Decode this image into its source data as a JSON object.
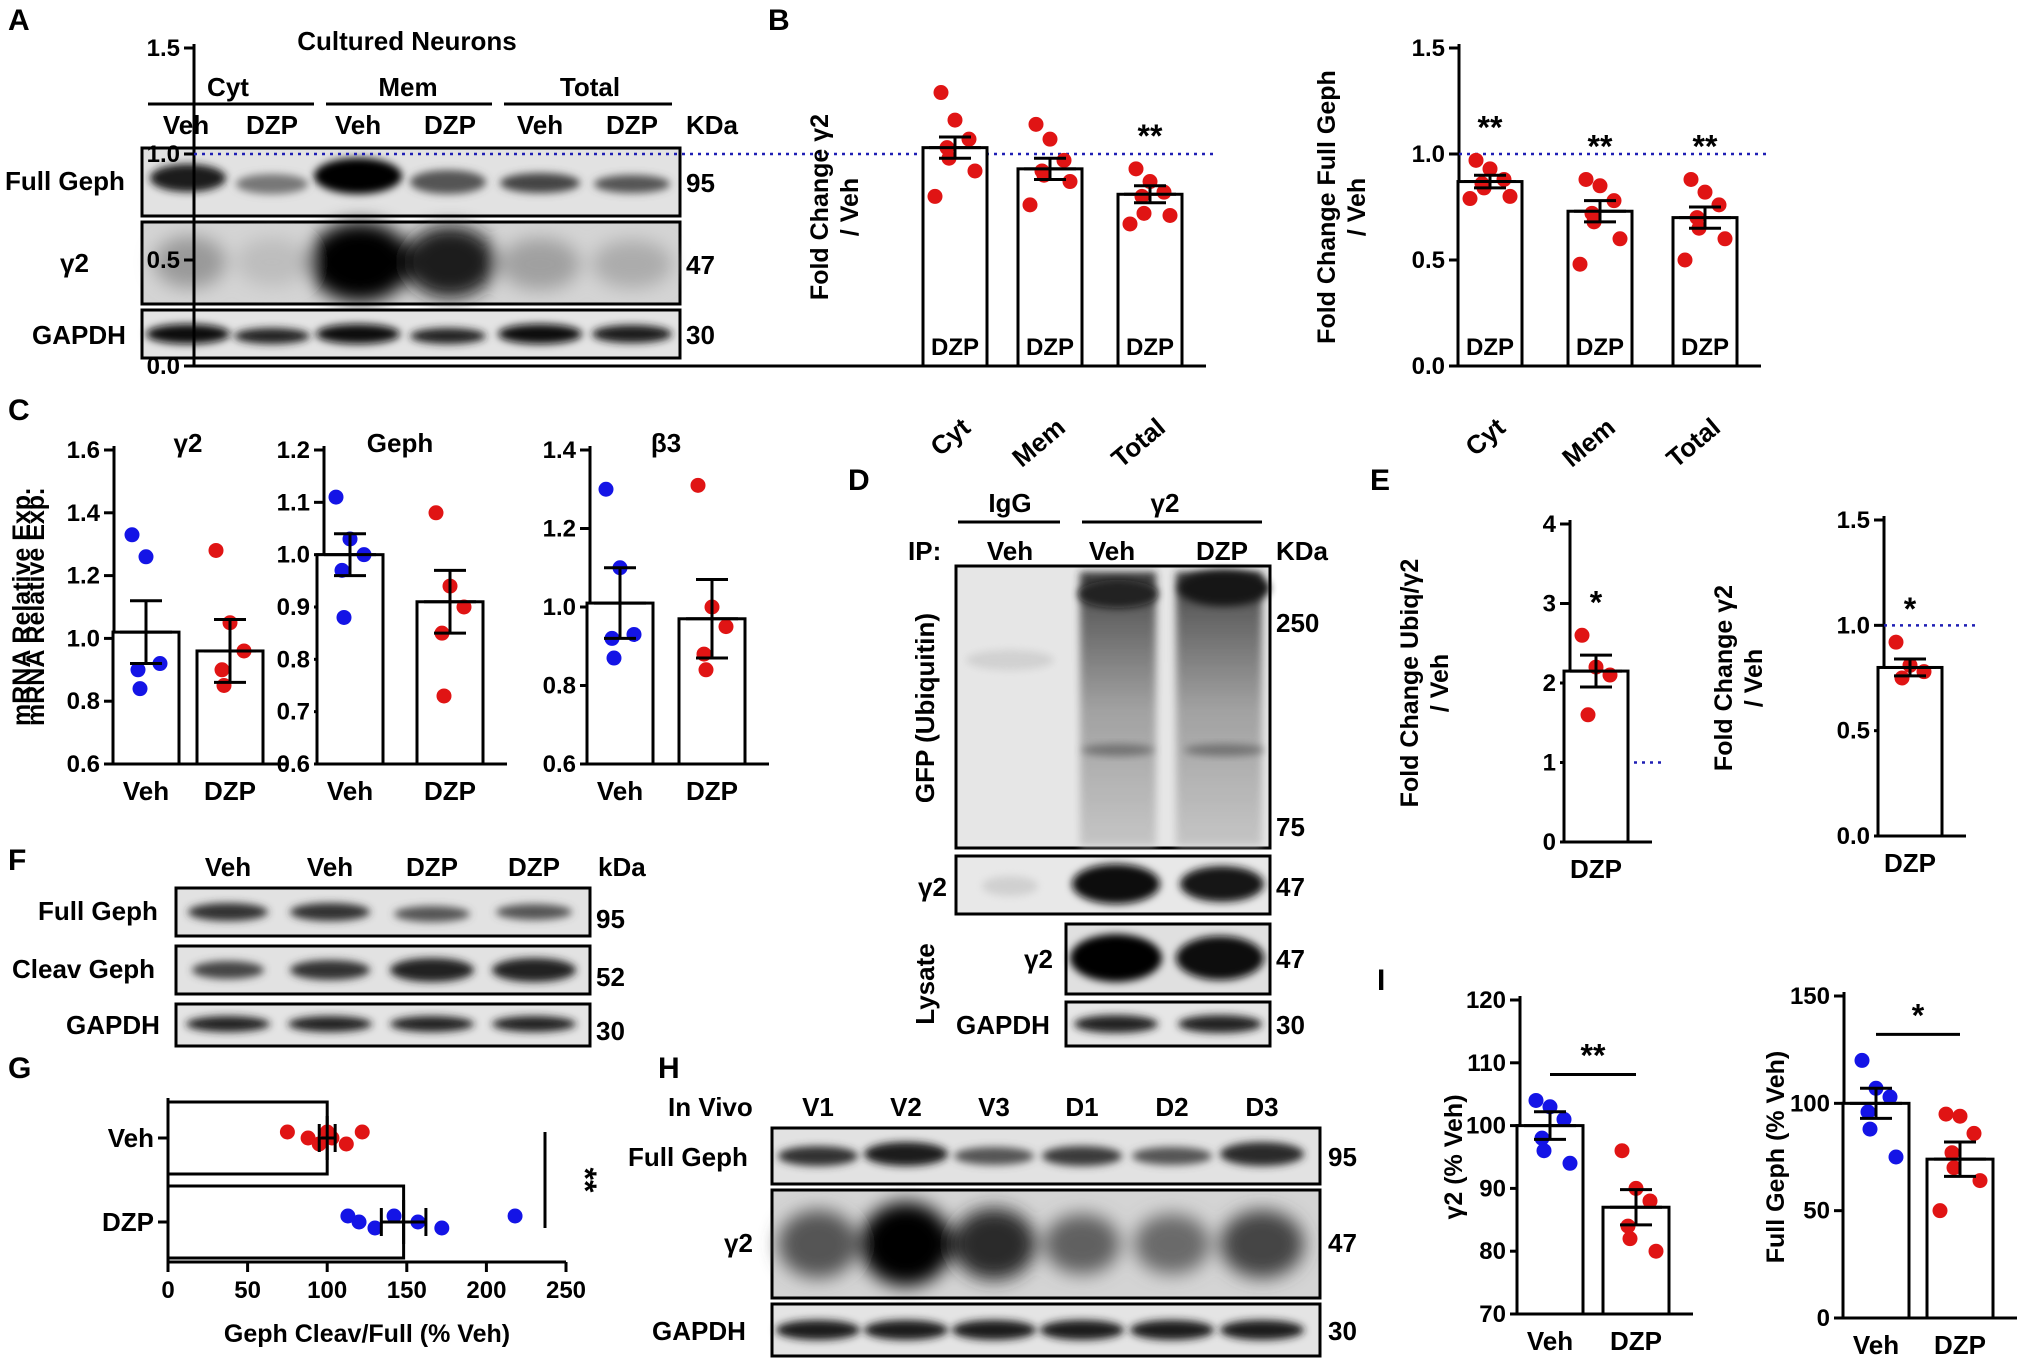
{
  "panels": {
    "A": "A",
    "B": "B",
    "C": "C",
    "D": "D",
    "E": "E",
    "F": "F",
    "G": "G",
    "H": "H",
    "I": "I"
  },
  "colors": {
    "veh": "#1414e6",
    "dzp": "#e01414",
    "ref": "#1e1eb4"
  },
  "panel_A": {
    "title": "Cultured Neurons",
    "groups": [
      "Cyt",
      "Mem",
      "Total"
    ],
    "lanes": [
      "Veh",
      "DZP",
      "Veh",
      "DZP",
      "Veh",
      "DZP"
    ],
    "kda_header": "KDa",
    "blots": [
      {
        "label": "Full Geph",
        "kda": "95"
      },
      {
        "label": "γ2",
        "kda": "47"
      },
      {
        "label": "GAPDH",
        "kda": "30"
      }
    ]
  },
  "chart_data": [
    {
      "id": "B1",
      "type": "bar",
      "ylabel": "Fold Change γ2 / Veh",
      "ylabel_lines": [
        "Fold Change γ2",
        "/ Veh"
      ],
      "categories": [
        "Cyt",
        "Mem",
        "Total"
      ],
      "bar_label": "DZP",
      "ylim": [
        0,
        1.5
      ],
      "yticks": [
        "0.0",
        "0.5",
        "1.0",
        "1.5"
      ],
      "ytick_values": [
        0,
        0.5,
        1.0,
        1.5
      ],
      "reference_line": 1.0,
      "series": [
        {
          "values": [
            1.03,
            0.93,
            0.81
          ],
          "sem": [
            0.05,
            0.05,
            0.04
          ]
        }
      ],
      "points": [
        [
          1.29,
          1.16,
          1.07,
          1.03,
          0.98,
          0.92,
          0.8
        ],
        [
          1.14,
          1.07,
          0.97,
          0.92,
          0.9,
          0.87,
          0.76
        ],
        [
          0.93,
          0.87,
          0.82,
          0.8,
          0.72,
          0.71,
          0.67
        ]
      ],
      "significance": [
        "",
        "",
        "**"
      ]
    },
    {
      "id": "B2",
      "type": "bar",
      "ylabel": "Fold Change Full Geph / Veh",
      "ylabel_lines": [
        "Fold Change Full Geph",
        "/ Veh"
      ],
      "categories": [
        "Cyt",
        "Mem",
        "Total"
      ],
      "bar_label": "DZP",
      "ylim": [
        0,
        1.5
      ],
      "yticks": [
        "0.0",
        "0.5",
        "1.0",
        "1.5"
      ],
      "ytick_values": [
        0,
        0.5,
        1.0,
        1.5
      ],
      "reference_line": 1.0,
      "series": [
        {
          "values": [
            0.87,
            0.73,
            0.7
          ],
          "sem": [
            0.03,
            0.05,
            0.05
          ]
        }
      ],
      "points": [
        [
          0.97,
          0.93,
          0.88,
          0.86,
          0.84,
          0.8,
          0.79
        ],
        [
          0.88,
          0.85,
          0.78,
          0.72,
          0.68,
          0.6,
          0.48
        ],
        [
          0.88,
          0.82,
          0.76,
          0.7,
          0.65,
          0.6,
          0.5
        ]
      ],
      "significance": [
        "**",
        "**",
        "**"
      ]
    },
    {
      "id": "C1",
      "type": "bar",
      "title": "γ2",
      "ylabel": "mRNA Relative Exp.",
      "categories": [
        "Veh",
        "DZP"
      ],
      "ylim": [
        0.6,
        1.6
      ],
      "yticks": [
        "0.6",
        "0.8",
        "1.0",
        "1.2",
        "1.4",
        "1.6"
      ],
      "ytick_values": [
        0.6,
        0.8,
        1.0,
        1.2,
        1.4,
        1.6
      ],
      "series": [
        {
          "values": [
            1.02,
            0.96
          ],
          "sem": [
            0.1,
            0.1
          ]
        }
      ],
      "points": [
        [
          1.33,
          1.26,
          0.92,
          0.9,
          0.84
        ],
        [
          1.28,
          1.05,
          0.96,
          0.9,
          0.85
        ]
      ],
      "point_colors": [
        "veh",
        "dzp"
      ]
    },
    {
      "id": "C2",
      "type": "bar",
      "title": "Geph",
      "categories": [
        "Veh",
        "DZP"
      ],
      "ylim": [
        0.6,
        1.2
      ],
      "yticks": [
        "0.6",
        "0.7",
        "0.8",
        "0.9",
        "1.0",
        "1.1",
        "1.2"
      ],
      "ytick_values": [
        0.6,
        0.7,
        0.8,
        0.9,
        1.0,
        1.1,
        1.2
      ],
      "series": [
        {
          "values": [
            1.0,
            0.91
          ],
          "sem": [
            0.04,
            0.06
          ]
        }
      ],
      "points": [
        [
          1.11,
          1.03,
          1.0,
          0.97,
          0.88
        ],
        [
          1.08,
          0.94,
          0.9,
          0.85,
          0.73
        ]
      ],
      "point_colors": [
        "veh",
        "dzp"
      ]
    },
    {
      "id": "C3",
      "type": "bar",
      "title": "β3",
      "categories": [
        "Veh",
        "DZP"
      ],
      "ylim": [
        0.6,
        1.4
      ],
      "yticks": [
        "0.6",
        "0.8",
        "1.0",
        "1.2",
        "1.4"
      ],
      "ytick_values": [
        0.6,
        0.8,
        1.0,
        1.2,
        1.4
      ],
      "series": [
        {
          "values": [
            1.01,
            0.97
          ],
          "sem": [
            0.09,
            0.1
          ]
        }
      ],
      "points": [
        [
          1.3,
          1.1,
          0.93,
          0.92,
          0.87
        ],
        [
          1.31,
          1.0,
          0.95,
          0.88,
          0.84
        ]
      ],
      "point_colors": [
        "veh",
        "dzp"
      ]
    },
    {
      "id": "E1",
      "type": "bar",
      "ylabel": "Fold Change Ubiq/γ2 / Veh",
      "ylabel_lines": [
        "Fold Change Ubiq/γ2",
        "/ Veh"
      ],
      "categories": [
        "DZP"
      ],
      "ylim": [
        0,
        4
      ],
      "yticks": [
        "0",
        "1",
        "2",
        "3",
        "4"
      ],
      "ytick_values": [
        0,
        1,
        2,
        3,
        4
      ],
      "reference_line": 1.0,
      "series": [
        {
          "values": [
            2.15
          ],
          "sem": [
            0.2
          ]
        }
      ],
      "points": [
        [
          2.6,
          2.2,
          2.1,
          1.6
        ]
      ],
      "point_colors": [
        "dzp"
      ],
      "significance": [
        "*"
      ]
    },
    {
      "id": "E2",
      "type": "bar",
      "ylabel": "Fold Change γ2 / Veh",
      "ylabel_lines": [
        "Fold Change γ2",
        "/ Veh"
      ],
      "categories": [
        "DZP"
      ],
      "ylim": [
        0,
        1.5
      ],
      "yticks": [
        "0.0",
        "0.5",
        "1.0",
        "1.5"
      ],
      "ytick_values": [
        0,
        0.5,
        1.0,
        1.5
      ],
      "reference_line": 1.0,
      "series": [
        {
          "values": [
            0.8
          ],
          "sem": [
            0.04
          ]
        }
      ],
      "points": [
        [
          0.92,
          0.81,
          0.78,
          0.75
        ]
      ],
      "point_colors": [
        "dzp"
      ],
      "significance": [
        "*"
      ]
    },
    {
      "id": "G",
      "type": "bar",
      "orientation": "horizontal",
      "xlabel": "Geph Cleav/Full (% Veh)",
      "categories": [
        "Veh",
        "DZP"
      ],
      "xlim": [
        0,
        250
      ],
      "xticks": [
        "0",
        "50",
        "100",
        "150",
        "200",
        "250"
      ],
      "xtick_values": [
        0,
        50,
        100,
        150,
        200,
        250
      ],
      "series": [
        {
          "values": [
            100,
            148
          ],
          "sem": [
            5,
            14
          ]
        }
      ],
      "points": [
        [
          75,
          88,
          95,
          100,
          103,
          112,
          122
        ],
        [
          113,
          120,
          130,
          142,
          157,
          172,
          218
        ]
      ],
      "point_colors": [
        "dzp",
        "veh"
      ],
      "significance": "**"
    },
    {
      "id": "I1",
      "type": "bar",
      "ylabel": "γ2 (% Veh)",
      "categories": [
        "Veh",
        "DZP"
      ],
      "ylim": [
        70,
        120
      ],
      "yticks": [
        "70",
        "80",
        "90",
        "100",
        "110",
        "120"
      ],
      "ytick_values": [
        70,
        80,
        90,
        100,
        110,
        120
      ],
      "series": [
        {
          "values": [
            100,
            87
          ],
          "sem": [
            2.2,
            2.8
          ]
        }
      ],
      "points": [
        [
          104,
          103,
          101,
          98,
          96,
          94
        ],
        [
          96,
          90,
          88,
          84,
          82,
          80
        ]
      ],
      "point_colors": [
        "veh",
        "dzp"
      ],
      "significance": "**"
    },
    {
      "id": "I2",
      "type": "bar",
      "ylabel": "Full Geph (% Veh)",
      "categories": [
        "Veh",
        "DZP"
      ],
      "ylim": [
        0,
        150
      ],
      "yticks": [
        "0",
        "50",
        "100",
        "150"
      ],
      "ytick_values": [
        0,
        50,
        100,
        150
      ],
      "series": [
        {
          "values": [
            100,
            74
          ],
          "sem": [
            7,
            8
          ]
        }
      ],
      "points": [
        [
          120,
          107,
          103,
          96,
          88,
          75
        ],
        [
          95,
          94,
          86,
          77,
          70,
          64,
          50
        ]
      ],
      "point_colors": [
        "veh",
        "dzp"
      ],
      "significance": "*"
    }
  ],
  "panel_D": {
    "ip_label": "IP:",
    "groups": [
      "IgG",
      "γ2"
    ],
    "lanes": [
      "Veh",
      "Veh",
      "DZP"
    ],
    "kda_header": "KDa",
    "ubiq_label": "GFP (Ubiquitin)",
    "kda_markers": [
      "250",
      "75"
    ],
    "ip_g2_label": "γ2",
    "ip_g2_kda": "47",
    "lysate_label": "Lysate",
    "lysate_blots": [
      {
        "label": "γ2",
        "kda": "47"
      },
      {
        "label": "GAPDH",
        "kda": "30"
      }
    ]
  },
  "panel_F": {
    "lanes": [
      "Veh",
      "Veh",
      "DZP",
      "DZP"
    ],
    "kda_header": "kDa",
    "blots": [
      {
        "label": "Full Geph",
        "kda": "95"
      },
      {
        "label": "Cleav Geph",
        "kda": "52"
      },
      {
        "label": "GAPDH",
        "kda": "30"
      }
    ]
  },
  "panel_H": {
    "condition": "In Vivo",
    "lanes": [
      "V1",
      "V2",
      "V3",
      "D1",
      "D2",
      "D3"
    ],
    "blots": [
      {
        "label": "Full Geph",
        "kda": "95"
      },
      {
        "label": "γ2",
        "kda": "47"
      },
      {
        "label": "GAPDH",
        "kda": "30"
      }
    ]
  }
}
